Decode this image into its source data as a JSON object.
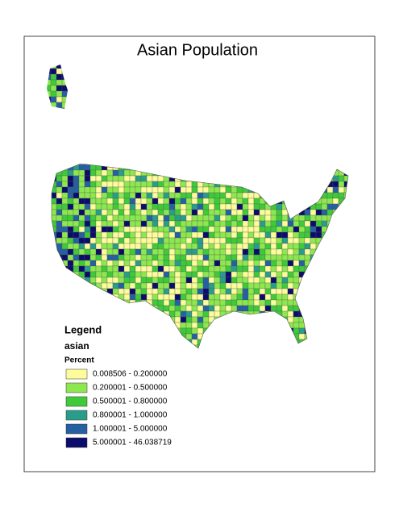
{
  "title": "Asian Population",
  "legend": {
    "title": "Legend",
    "layer": "asian",
    "field": "Percent",
    "classes": [
      {
        "label": "0.008506 - 0.200000",
        "color": "#fcfc9c"
      },
      {
        "label": "0.200001 - 0.500000",
        "color": "#8de84f"
      },
      {
        "label": "0.500001 - 0.800000",
        "color": "#3fca3a"
      },
      {
        "label": "0.800001 - 1.000000",
        "color": "#2a9d8a"
      },
      {
        "label": "1.000001 - 5.000000",
        "color": "#2560a3"
      },
      {
        "label": "5.000001 - 46.038719",
        "color": "#0c0c6c"
      }
    ]
  }
}
